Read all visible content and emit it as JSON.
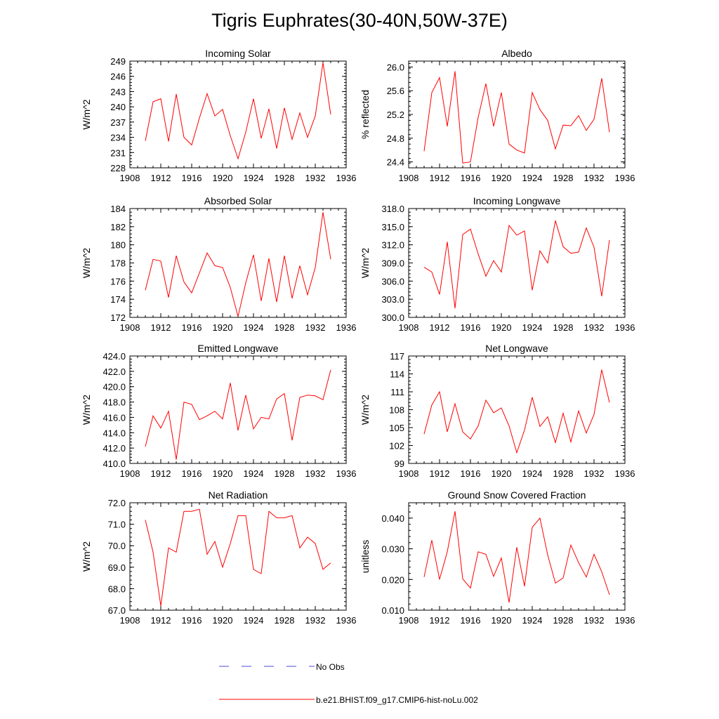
{
  "title": "Tigris Euphrates(30-40N,50W-37E)",
  "legend": [
    {
      "label": "No Obs",
      "color": "#4b4bdc",
      "dash": "dashed"
    },
    {
      "label": "b.e21.BHIST.f09_g17.CMIP6-hist-noLu.002",
      "color": "#ff0000",
      "dash": "solid"
    }
  ],
  "chart_data": [
    {
      "type": "line",
      "title": "Incoming Solar",
      "ylabel": "W/m^2",
      "xlim": [
        1908,
        1936
      ],
      "xticks": [
        "1908",
        "1912",
        "1916",
        "1920",
        "1924",
        "1928",
        "1932",
        "1936"
      ],
      "ylim": [
        228,
        249
      ],
      "yticks": [
        "228",
        "231",
        "234",
        "237",
        "240",
        "243",
        "246",
        "249"
      ],
      "x": [
        1910,
        1911,
        1912,
        1913,
        1914,
        1915,
        1916,
        1917,
        1918,
        1919,
        1920,
        1921,
        1922,
        1923,
        1924,
        1925,
        1926,
        1927,
        1928,
        1929,
        1930,
        1931,
        1932,
        1933,
        1934
      ],
      "series": [
        {
          "color": "#ff0000",
          "values": [
            233.3,
            241.0,
            241.6,
            233.2,
            242.5,
            234.0,
            232.5,
            237.8,
            242.6,
            238.2,
            239.5,
            234.3,
            229.8,
            235.0,
            241.6,
            233.8,
            239.6,
            231.8,
            239.8,
            233.6,
            238.8,
            234.0,
            238.2,
            248.7,
            238.5
          ]
        }
      ]
    },
    {
      "type": "line",
      "title": "Albedo",
      "ylabel": "% reflected",
      "xlim": [
        1908,
        1936
      ],
      "xticks": [
        "1908",
        "1912",
        "1916",
        "1920",
        "1924",
        "1928",
        "1932",
        "1936"
      ],
      "ylim": [
        24.3,
        26.1
      ],
      "yticks": [
        "24.4",
        "24.8",
        "25.2",
        "25.6",
        "26.0"
      ],
      "ytick_values": [
        24.4,
        24.8,
        25.2,
        25.6,
        26.0
      ],
      "x": [
        1910,
        1911,
        1912,
        1913,
        1914,
        1915,
        1916,
        1917,
        1918,
        1919,
        1920,
        1921,
        1922,
        1923,
        1924,
        1925,
        1926,
        1927,
        1928,
        1929,
        1930,
        1931,
        1932,
        1933,
        1934
      ],
      "series": [
        {
          "color": "#ff0000",
          "values": [
            24.58,
            25.57,
            25.82,
            25.0,
            25.93,
            24.38,
            24.4,
            25.15,
            25.72,
            25.0,
            25.57,
            24.7,
            24.6,
            24.55,
            25.57,
            25.28,
            25.1,
            24.62,
            25.02,
            25.01,
            25.18,
            24.93,
            25.12,
            25.81,
            24.9
          ]
        }
      ]
    },
    {
      "type": "line",
      "title": "Absorbed Solar",
      "ylabel": "W/m^2",
      "xlim": [
        1908,
        1936
      ],
      "xticks": [
        "1908",
        "1912",
        "1916",
        "1920",
        "1924",
        "1928",
        "1932",
        "1936"
      ],
      "ylim": [
        172,
        184
      ],
      "yticks": [
        "172",
        "174",
        "176",
        "178",
        "180",
        "182",
        "184"
      ],
      "x": [
        1910,
        1911,
        1912,
        1913,
        1914,
        1915,
        1916,
        1917,
        1918,
        1919,
        1920,
        1921,
        1922,
        1923,
        1924,
        1925,
        1926,
        1927,
        1928,
        1929,
        1930,
        1931,
        1932,
        1933,
        1934
      ],
      "series": [
        {
          "color": "#ff0000",
          "values": [
            175.0,
            178.4,
            178.2,
            174.2,
            178.8,
            175.9,
            174.7,
            176.9,
            179.1,
            177.7,
            177.5,
            175.3,
            172.1,
            175.8,
            178.9,
            173.8,
            178.5,
            173.7,
            178.8,
            174.1,
            177.7,
            174.5,
            177.5,
            183.6,
            178.4
          ]
        }
      ]
    },
    {
      "type": "line",
      "title": "Incoming Longwave",
      "ylabel": "W/m^2",
      "xlim": [
        1908,
        1936
      ],
      "xticks": [
        "1908",
        "1912",
        "1916",
        "1920",
        "1924",
        "1928",
        "1932",
        "1936"
      ],
      "ylim": [
        300,
        318
      ],
      "yticks": [
        "300.0",
        "303.0",
        "306.0",
        "309.0",
        "312.0",
        "315.0",
        "318.0"
      ],
      "ytick_values": [
        300,
        303,
        306,
        309,
        312,
        315,
        318
      ],
      "x": [
        1910,
        1911,
        1912,
        1913,
        1914,
        1915,
        1916,
        1917,
        1918,
        1919,
        1920,
        1921,
        1922,
        1923,
        1924,
        1925,
        1926,
        1927,
        1928,
        1929,
        1930,
        1931,
        1932,
        1933,
        1934
      ],
      "series": [
        {
          "color": "#ff0000",
          "values": [
            308.3,
            307.5,
            303.8,
            312.5,
            301.5,
            313.7,
            314.6,
            310.5,
            306.8,
            309.4,
            307.5,
            315.2,
            313.6,
            314.3,
            304.5,
            311.0,
            309.0,
            316.0,
            311.7,
            310.6,
            310.8,
            314.8,
            311.6,
            303.5,
            312.8
          ]
        }
      ]
    },
    {
      "type": "line",
      "title": "Emitted Longwave",
      "ylabel": "W/m^2",
      "xlim": [
        1908,
        1936
      ],
      "xticks": [
        "1908",
        "1912",
        "1916",
        "1920",
        "1924",
        "1928",
        "1932",
        "1936"
      ],
      "ylim": [
        410,
        424
      ],
      "yticks": [
        "410.0",
        "412.0",
        "414.0",
        "416.0",
        "418.0",
        "420.0",
        "422.0",
        "424.0"
      ],
      "ytick_values": [
        410,
        412,
        414,
        416,
        418,
        420,
        422,
        424
      ],
      "x": [
        1910,
        1911,
        1912,
        1913,
        1914,
        1915,
        1916,
        1917,
        1918,
        1919,
        1920,
        1921,
        1922,
        1923,
        1924,
        1925,
        1926,
        1927,
        1928,
        1929,
        1930,
        1931,
        1932,
        1933,
        1934
      ],
      "series": [
        {
          "color": "#ff0000",
          "values": [
            412.2,
            416.2,
            414.6,
            416.8,
            410.5,
            418.0,
            417.7,
            415.7,
            416.2,
            416.8,
            415.8,
            420.5,
            414.3,
            418.9,
            414.5,
            416.0,
            415.8,
            418.4,
            419.1,
            413.0,
            418.6,
            418.9,
            418.8,
            418.3,
            422.2
          ]
        }
      ]
    },
    {
      "type": "line",
      "title": "Net Longwave",
      "ylabel": "W/m^2",
      "xlim": [
        1908,
        1936
      ],
      "xticks": [
        "1908",
        "1912",
        "1916",
        "1920",
        "1924",
        "1928",
        "1932",
        "1936"
      ],
      "ylim": [
        99,
        117
      ],
      "yticks": [
        "99",
        "102",
        "105",
        "108",
        "111",
        "114",
        "117"
      ],
      "x": [
        1910,
        1911,
        1912,
        1913,
        1914,
        1915,
        1916,
        1917,
        1918,
        1919,
        1920,
        1921,
        1922,
        1923,
        1924,
        1925,
        1926,
        1927,
        1928,
        1929,
        1930,
        1931,
        1932,
        1933,
        1934
      ],
      "series": [
        {
          "color": "#ff0000",
          "values": [
            103.9,
            108.8,
            111.0,
            104.3,
            109.0,
            104.3,
            103.1,
            105.3,
            109.6,
            107.5,
            108.3,
            105.3,
            100.8,
            104.6,
            110.1,
            105.2,
            106.8,
            102.5,
            107.4,
            102.6,
            107.8,
            104.1,
            107.2,
            114.7,
            109.2
          ]
        }
      ]
    },
    {
      "type": "line",
      "title": "Net Radiation",
      "ylabel": "W/m^2",
      "xlim": [
        1908,
        1936
      ],
      "xticks": [
        "1908",
        "1912",
        "1916",
        "1920",
        "1924",
        "1928",
        "1932",
        "1936"
      ],
      "ylim": [
        67,
        72
      ],
      "yticks": [
        "67.0",
        "68.0",
        "69.0",
        "70.0",
        "71.0",
        "72.0"
      ],
      "ytick_values": [
        67,
        68,
        69,
        70,
        71,
        72
      ],
      "x": [
        1910,
        1911,
        1912,
        1913,
        1914,
        1915,
        1916,
        1917,
        1918,
        1919,
        1920,
        1921,
        1922,
        1923,
        1924,
        1925,
        1926,
        1927,
        1928,
        1929,
        1930,
        1931,
        1932,
        1933,
        1934
      ],
      "series": [
        {
          "color": "#ff0000",
          "values": [
            71.2,
            69.7,
            67.2,
            69.9,
            69.7,
            71.6,
            71.6,
            71.7,
            69.6,
            70.2,
            69.0,
            70.1,
            71.4,
            71.4,
            68.9,
            68.7,
            71.6,
            71.3,
            71.3,
            71.4,
            69.9,
            70.4,
            70.1,
            68.9,
            69.2
          ]
        }
      ]
    },
    {
      "type": "line",
      "title": "Ground Snow Covered Fraction",
      "ylabel": "unitless",
      "xlim": [
        1908,
        1936
      ],
      "xticks": [
        "1908",
        "1912",
        "1916",
        "1920",
        "1924",
        "1928",
        "1932",
        "1936"
      ],
      "ylim": [
        0.01,
        0.045
      ],
      "yticks": [
        "0.010",
        "0.020",
        "0.030",
        "0.040"
      ],
      "ytick_values": [
        0.01,
        0.02,
        0.03,
        0.04
      ],
      "x": [
        1910,
        1911,
        1912,
        1913,
        1914,
        1915,
        1916,
        1917,
        1918,
        1919,
        1920,
        1921,
        1922,
        1923,
        1924,
        1925,
        1926,
        1927,
        1928,
        1929,
        1930,
        1931,
        1932,
        1933,
        1934
      ],
      "series": [
        {
          "color": "#ff0000",
          "values": [
            0.0208,
            0.0328,
            0.02,
            0.029,
            0.0422,
            0.0202,
            0.0172,
            0.029,
            0.0282,
            0.021,
            0.027,
            0.0125,
            0.0305,
            0.0178,
            0.037,
            0.04,
            0.028,
            0.0188,
            0.0205,
            0.0312,
            0.0255,
            0.0208,
            0.0282,
            0.0225,
            0.015
          ]
        }
      ]
    }
  ]
}
